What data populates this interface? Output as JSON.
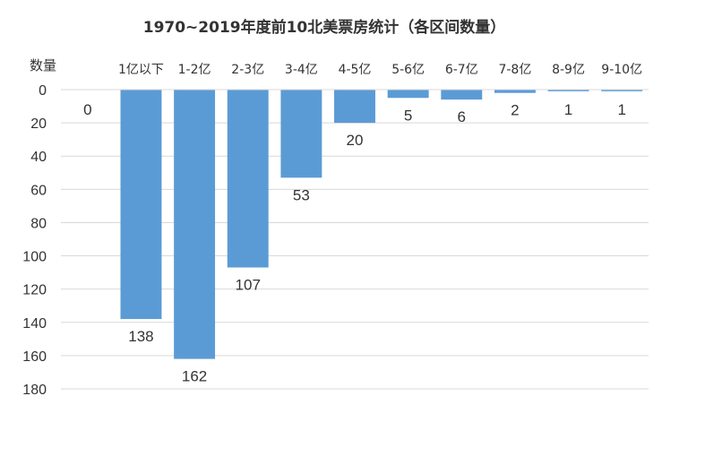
{
  "chart_data": {
    "type": "bar",
    "title": "1970~2019年度前10北美票房统计（各区间数量）",
    "ylabel": "数量",
    "categories": [
      "",
      "1亿以下",
      "1-2亿",
      "2-3亿",
      "3-4亿",
      "4-5亿",
      "5-6亿",
      "6-7亿",
      "7-8亿",
      "8-9亿",
      "9-10亿"
    ],
    "values": [
      0,
      138,
      162,
      107,
      53,
      20,
      5,
      6,
      2,
      1,
      1
    ],
    "data_labels": [
      "0",
      "138",
      "162",
      "107",
      "53",
      "20",
      "5",
      "6",
      "2",
      "1",
      "1"
    ],
    "yticks": [
      "0",
      "20",
      "40",
      "60",
      "80",
      "100",
      "120",
      "140",
      "160",
      "180"
    ],
    "ylim": [
      0,
      180
    ],
    "y_axis_inverted": true,
    "category_axis_position": "top",
    "grid": true,
    "legend": "none",
    "bar_color": "#5b9bd5",
    "grid_color": "#d9d9d9"
  }
}
